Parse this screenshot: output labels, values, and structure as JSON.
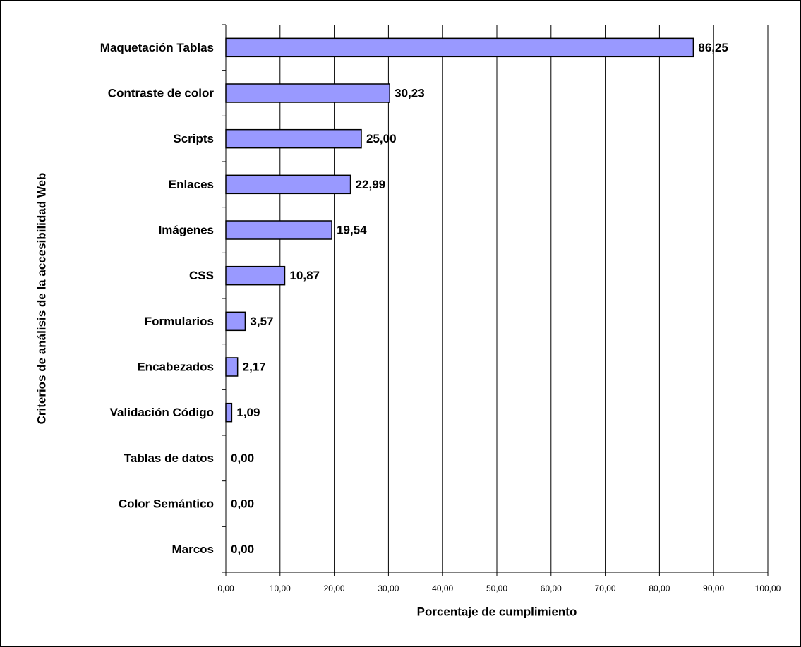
{
  "chart_data": {
    "type": "hbar",
    "xlabel": "Porcentaje de cumplimiento",
    "ylabel": "Criterios de análisis de la accesibilidad Web",
    "categories": [
      "Maquetación Tablas",
      "Contraste de color",
      "Scripts",
      "Enlaces",
      "Imágenes",
      "CSS",
      "Formularios",
      "Encabezados",
      "Validación Código",
      "Tablas de datos",
      "Color Semántico",
      "Marcos"
    ],
    "values": [
      86.25,
      30.23,
      25.0,
      22.99,
      19.54,
      10.87,
      3.57,
      2.17,
      1.09,
      0,
      0,
      0
    ],
    "value_labels": [
      "86,25",
      "30,23",
      "25,00",
      "22,99",
      "19,54",
      "10,87",
      "3,57",
      "2,17",
      "1,09",
      "0,00",
      "0,00",
      "0,00"
    ],
    "color": "#9999ff",
    "xlim": [
      0,
      100
    ],
    "xticks": [
      {
        "value": 0,
        "label": "0,00"
      },
      {
        "value": 10,
        "label": "10,00"
      },
      {
        "value": 20,
        "label": "20,00"
      },
      {
        "value": 30,
        "label": "30,00"
      },
      {
        "value": 40,
        "label": "40,00"
      },
      {
        "value": 50,
        "label": "50,00"
      },
      {
        "value": 60,
        "label": "60,00"
      },
      {
        "value": 70,
        "label": "70,00"
      },
      {
        "value": 80,
        "label": "80,00"
      },
      {
        "value": 90,
        "label": "90,00"
      },
      {
        "value": 100,
        "label": "100,00"
      }
    ],
    "grid": true
  }
}
